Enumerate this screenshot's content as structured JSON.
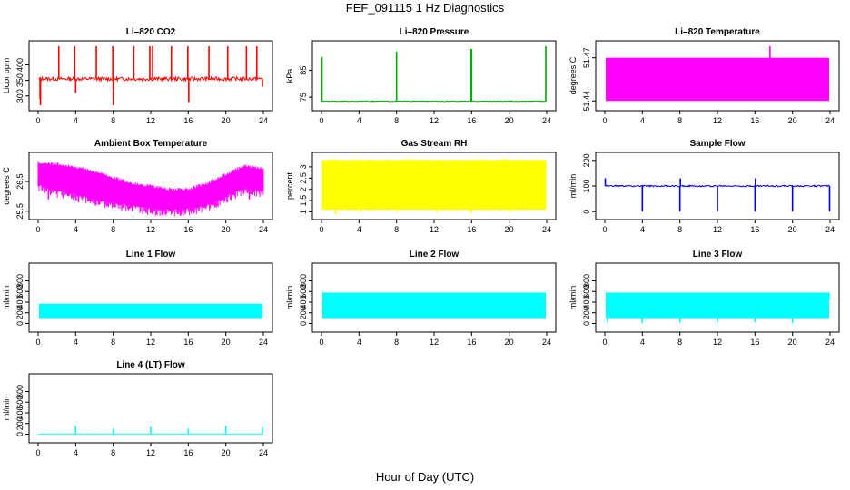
{
  "figure": {
    "title": "FEF_091115  1 Hz Diagnostics",
    "xlabel": "Hour of Day (UTC)"
  },
  "chart_data": [
    {
      "id": "li820-co2",
      "type": "line",
      "title": "Li–820 CO2",
      "ylabel": "Licor ppm",
      "color": "#ff0000",
      "xlim": [
        0,
        24
      ],
      "ylim": [
        270,
        460
      ],
      "xticks": [
        0,
        4,
        8,
        12,
        16,
        20,
        24
      ],
      "yticks": [
        300,
        350,
        400
      ],
      "baseline": 355,
      "noise": 6,
      "fill": false,
      "x": [
        0.2,
        0.25,
        2.2,
        3.9,
        4.0,
        6.2,
        7.95,
        8.0,
        8.05,
        10.2,
        11.9,
        12.2,
        14.2,
        15.95,
        16.05,
        18.2,
        20.2,
        22.2,
        23.3,
        23.9
      ],
      "y": [
        290,
        270,
        460,
        460,
        310,
        460,
        460,
        270,
        320,
        460,
        460,
        460,
        460,
        460,
        280,
        460,
        460,
        460,
        460,
        330
      ]
    },
    {
      "id": "li820-pressure",
      "type": "line",
      "title": "Li–820 Pressure",
      "ylabel": "kPa",
      "color": "#00aa00",
      "xlim": [
        0,
        24
      ],
      "ylim": [
        72,
        94
      ],
      "xticks": [
        0,
        4,
        8,
        12,
        16,
        20,
        24
      ],
      "yticks": [
        75,
        85
      ],
      "baseline": 73.5,
      "noise": 0.15,
      "fill": false,
      "x": [
        0.05,
        8.0,
        15.95,
        16.0,
        23.9
      ],
      "y": [
        90,
        92,
        93,
        93,
        94
      ]
    },
    {
      "id": "li820-temperature",
      "type": "area",
      "title": "Li–820 Temperature",
      "ylabel": "degrees C",
      "color": "#ff00ff",
      "xlim": [
        0,
        24
      ],
      "ylim": [
        51.437,
        51.478
      ],
      "xticks": [
        0,
        4,
        8,
        12,
        16,
        20,
        24
      ],
      "yticks": [
        51.44,
        51.47
      ],
      "band": [
        51.44,
        51.47
      ],
      "x": [
        17.6
      ],
      "y": [
        51.478
      ]
    },
    {
      "id": "ambient-box-temperature",
      "type": "area",
      "title": "Ambient Box Temperature",
      "ylabel": "degrees C",
      "color": "#ff00ff",
      "xlim": [
        0,
        24
      ],
      "ylim": [
        25.4,
        27.3
      ],
      "xticks": [
        0,
        4,
        8,
        12,
        16,
        20,
        24
      ],
      "yticks": [
        25.5,
        26.5
      ],
      "x": [
        0,
        2,
        4,
        6,
        8,
        10,
        12,
        14,
        16,
        18,
        20,
        22,
        24
      ],
      "upper": [
        27.1,
        27.05,
        26.95,
        26.8,
        26.6,
        26.4,
        26.3,
        26.2,
        26.2,
        26.4,
        26.7,
        27.0,
        26.9
      ],
      "lower": [
        26.4,
        26.2,
        26.1,
        25.9,
        25.8,
        25.7,
        25.6,
        25.55,
        25.6,
        25.7,
        26.0,
        26.3,
        26.2
      ],
      "x_spikes": [
        1.1,
        4.3,
        14.9,
        15.5,
        22.5
      ],
      "y_spikes": [
        25.9,
        25.8,
        25.4,
        25.5,
        25.9
      ]
    },
    {
      "id": "gas-stream-rh",
      "type": "area",
      "title": "Gas Stream RH",
      "ylabel": "percent",
      "color": "#ffff00",
      "xlim": [
        0,
        24
      ],
      "ylim": [
        0.9,
        3.4
      ],
      "xticks": [
        0,
        4,
        8,
        12,
        16,
        20,
        24
      ],
      "yticks": [
        1.0,
        1.5,
        2.0,
        2.5,
        3.0
      ],
      "band": [
        1.1,
        3.3
      ],
      "x_spikes": [
        1.5,
        4.2,
        8.1,
        12.3,
        16.0,
        20.1
      ],
      "y_spikes": [
        0.9,
        1.0,
        1.0,
        1.0,
        0.95,
        1.0
      ]
    },
    {
      "id": "sample-flow",
      "type": "line",
      "title": "Sample Flow",
      "ylabel": "ml/min",
      "color": "#0000dd",
      "xlim": [
        0,
        24
      ],
      "ylim": [
        -10,
        210
      ],
      "xticks": [
        0,
        4,
        8,
        12,
        16,
        20,
        24
      ],
      "yticks": [
        0,
        100,
        200
      ],
      "baseline": 100,
      "noise": 3,
      "fill": false,
      "x": [
        0.05,
        4.0,
        8.0,
        8.05,
        12.0,
        16.0,
        16.05,
        20.0,
        23.95
      ],
      "y": [
        130,
        0,
        0,
        130,
        0,
        0,
        130,
        0,
        0
      ]
    },
    {
      "id": "line-1-flow",
      "type": "area",
      "title": "Line 1 Flow",
      "ylabel": "ml/min",
      "color": "#00ffff",
      "xlim": [
        0,
        24
      ],
      "ylim": [
        -60,
        1030
      ],
      "xticks": [
        0,
        4,
        8,
        12,
        16,
        20,
        24
      ],
      "yticks": [
        0,
        200,
        400,
        600,
        800
      ],
      "band": [
        100,
        370
      ],
      "x_spikes": [
        4.0,
        8.0,
        12.0,
        16.0,
        20.0,
        23.9
      ],
      "y_spikes": [
        370,
        370,
        370,
        370,
        370,
        370
      ]
    },
    {
      "id": "line-2-flow",
      "type": "area",
      "title": "Line 2 Flow",
      "ylabel": "ml/min",
      "color": "#00ffff",
      "xlim": [
        0,
        24
      ],
      "ylim": [
        -60,
        1030
      ],
      "xticks": [
        0,
        4,
        8,
        12,
        16,
        20,
        24
      ],
      "yticks": [
        0,
        200,
        400,
        600,
        800
      ],
      "band": [
        100,
        580
      ],
      "x_spikes": [
        1.0,
        4.0,
        8.0,
        12.0,
        16.0,
        20.0,
        23.9
      ],
      "y_spikes": [
        580,
        580,
        580,
        580,
        580,
        580,
        580
      ]
    },
    {
      "id": "line-3-flow",
      "type": "area",
      "title": "Line 3 Flow",
      "ylabel": "ml/min",
      "color": "#00ffff",
      "xlim": [
        0,
        24
      ],
      "ylim": [
        -60,
        1030
      ],
      "xticks": [
        0,
        4,
        8,
        12,
        16,
        20,
        24
      ],
      "yticks": [
        0,
        200,
        400,
        600,
        800
      ],
      "band": [
        100,
        580
      ],
      "x_spikes": [
        0.3,
        4.0,
        8.0,
        12.0,
        16.0,
        20.0,
        23.9
      ],
      "y_spikes": [
        20,
        10,
        20,
        30,
        20,
        10,
        450
      ]
    },
    {
      "id": "line-4-lt-flow",
      "type": "line",
      "title": "Line 4 (LT) Flow",
      "ylabel": "ml/min",
      "color": "#00ffff",
      "xlim": [
        0,
        24
      ],
      "ylim": [
        -60,
        1030
      ],
      "xticks": [
        0,
        4,
        8,
        12,
        16,
        20,
        24
      ],
      "yticks": [
        0,
        200,
        400,
        600,
        800
      ],
      "baseline": 5,
      "noise": 1,
      "fill": false,
      "x": [
        4.0,
        8.0,
        12.0,
        16.0,
        20.0,
        23.9
      ],
      "y": [
        150,
        100,
        140,
        100,
        160,
        130
      ]
    }
  ]
}
